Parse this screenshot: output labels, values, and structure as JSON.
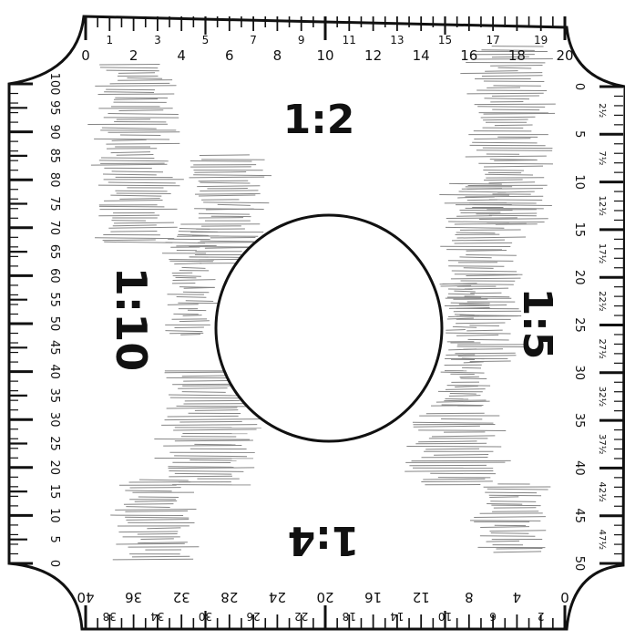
{
  "scales": {
    "top": {
      "ratio": "1:2",
      "labels": [
        "0",
        "1",
        "2",
        "3",
        "4",
        "5",
        "6",
        "7",
        "8",
        "9",
        "10",
        "11",
        "12",
        "13",
        "14",
        "15",
        "16",
        "17",
        "18",
        "19",
        "20"
      ]
    },
    "bottom": {
      "ratio": "1:4",
      "labels": [
        "0",
        "2",
        "4",
        "6",
        "8",
        "10",
        "12",
        "14",
        "16",
        "18",
        "20",
        "22",
        "24",
        "26",
        "28",
        "30",
        "32",
        "34",
        "36",
        "38",
        "40"
      ]
    },
    "left": {
      "ratio": "1:10",
      "labels": [
        "0",
        "5",
        "10",
        "15",
        "20",
        "25",
        "30",
        "35",
        "40",
        "45",
        "50",
        "55",
        "60",
        "65",
        "70",
        "75",
        "80",
        "85",
        "90",
        "95",
        "100"
      ]
    },
    "right": {
      "ratio": "1:5",
      "labels": [
        "0",
        "2½",
        "5",
        "7½",
        "10",
        "12½",
        "15",
        "17½",
        "20",
        "22½",
        "25",
        "27½",
        "30",
        "32½",
        "35",
        "37½",
        "40",
        "42½",
        "45",
        "47½",
        "50"
      ]
    }
  },
  "colors": {
    "ink": "#111111",
    "paper": "#ffffff"
  }
}
